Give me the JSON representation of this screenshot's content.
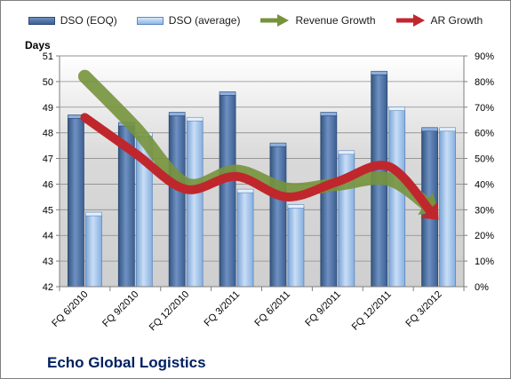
{
  "chart_data": {
    "type": "bar",
    "title": "Echo Global Logistics",
    "ylabel": "Days",
    "ylim": [
      42,
      51
    ],
    "y2lim": [
      0,
      90
    ],
    "legend_position": "top",
    "grid": true,
    "categories": [
      "FQ 6/2010",
      "FQ 9/2010",
      "FQ 12/2010",
      "FQ 3/2011",
      "FQ 6/2011",
      "FQ 9/2011",
      "FQ 12/2011",
      "FQ 3/2012"
    ],
    "y_ticks": [
      "42",
      "43",
      "44",
      "45",
      "46",
      "47",
      "48",
      "49",
      "50",
      "51"
    ],
    "y2_ticks": [
      "0%",
      "10%",
      "20%",
      "30%",
      "40%",
      "50%",
      "60%",
      "70%",
      "80%",
      "90%"
    ],
    "series": [
      {
        "name": "DSO (EOQ)",
        "kind": "bar",
        "axis": "left",
        "color": "#4a6fa5",
        "values": [
          48.6,
          48.3,
          48.7,
          49.5,
          47.5,
          48.7,
          50.3,
          48.1
        ]
      },
      {
        "name": "DSO (average)",
        "kind": "bar",
        "axis": "left",
        "color": "#9cc3ec",
        "values": [
          44.8,
          47.9,
          48.5,
          45.7,
          45.1,
          47.2,
          48.9,
          48.1
        ]
      },
      {
        "name": "Revenue Growth",
        "kind": "trend-arrow",
        "axis": "right",
        "unit": "%",
        "color": "#77933c",
        "values": [
          82,
          62,
          40,
          45,
          38,
          40,
          42,
          29
        ]
      },
      {
        "name": "AR Growth",
        "kind": "trend-arrow",
        "axis": "right",
        "unit": "%",
        "color": "#c0272d",
        "values": [
          66,
          52,
          38,
          43,
          35,
          41,
          47,
          26
        ]
      }
    ]
  }
}
